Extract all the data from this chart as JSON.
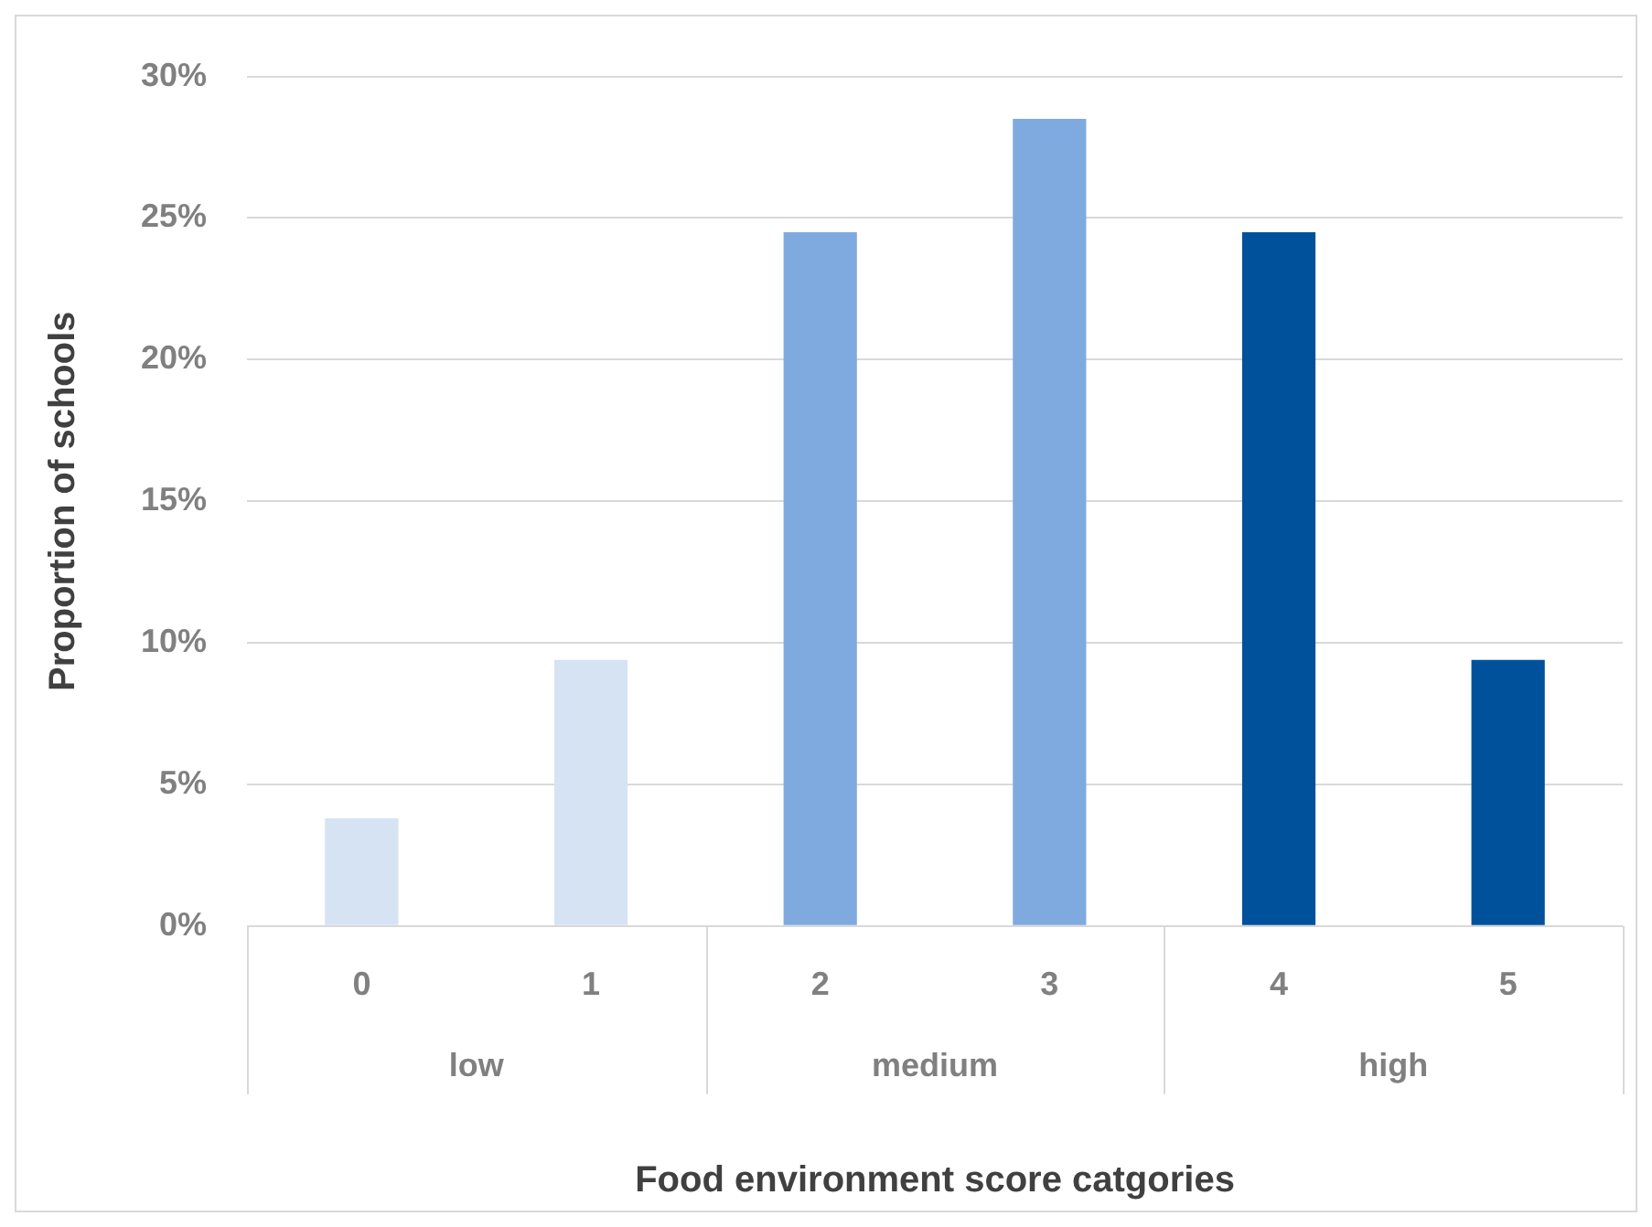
{
  "chart_data": {
    "type": "bar",
    "xlabel": "Food environment score catgories",
    "ylabel": "Proportion of schools",
    "categories": [
      "0",
      "1",
      "2",
      "3",
      "4",
      "5"
    ],
    "values": [
      3.8,
      9.4,
      24.5,
      28.5,
      24.5,
      9.4
    ],
    "colors": [
      "#d6e3f3",
      "#d6e3f3",
      "#7faadf",
      "#7faadf",
      "#00519b",
      "#00519b"
    ],
    "annotations": [
      "low",
      "medium",
      "high"
    ],
    "ylim": [
      0,
      30
    ],
    "yticks": [
      {
        "value": 0,
        "label": "0%"
      },
      {
        "value": 5,
        "label": "5%"
      },
      {
        "value": 10,
        "label": "10%"
      },
      {
        "value": 15,
        "label": "15%"
      },
      {
        "value": 20,
        "label": "20%"
      },
      {
        "value": 25,
        "label": "25%"
      },
      {
        "value": 30,
        "label": "30%"
      }
    ],
    "grid": "y",
    "legend": false
  }
}
